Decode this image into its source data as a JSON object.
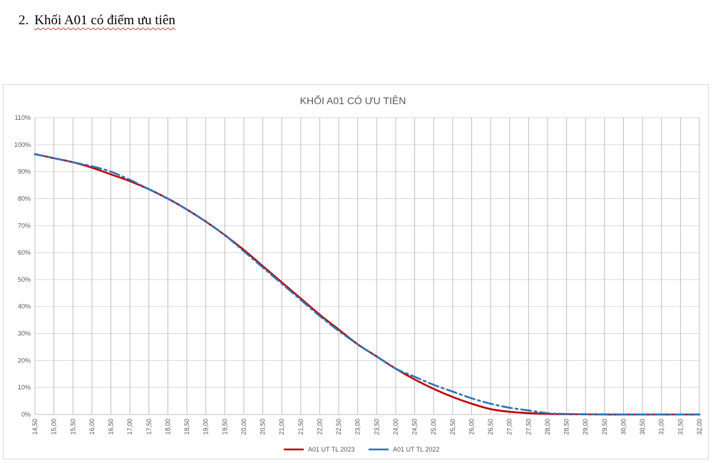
{
  "document": {
    "heading_number": "2.",
    "heading_text": "Khối A01 có điểm ưu tiên"
  },
  "chart_data": {
    "type": "line",
    "title": "KHỐI A01 CÓ ƯU TIÊN",
    "xlabel": "",
    "ylabel": "",
    "ylim": [
      0,
      110
    ],
    "x_tick_labels": [
      "14,50",
      "15,00",
      "15,50",
      "16,00",
      "16,50",
      "17,00",
      "17,50",
      "18,00",
      "18,50",
      "19,00",
      "19,50",
      "20,00",
      "20,50",
      "21,00",
      "21,50",
      "22,00",
      "22,50",
      "23,00",
      "23,50",
      "24,00",
      "24,50",
      "25,00",
      "25,50",
      "26,00",
      "26,50",
      "27,00",
      "27,50",
      "28,00",
      "28,50",
      "29,00",
      "29,50",
      "30,00",
      "30,50",
      "31,00",
      "31,50",
      "32,00"
    ],
    "y_tick_labels": [
      "0%",
      "10%",
      "20%",
      "30%",
      "40%",
      "50%",
      "60%",
      "70%",
      "80%",
      "90%",
      "100%",
      "110%"
    ],
    "grid": true,
    "legend_position": "bottom",
    "series": [
      {
        "name": "A01 UT TL 2023",
        "color": "#c00000",
        "dash": "solid",
        "x": [
          14.5,
          15,
          15.5,
          16,
          16.5,
          17,
          17.5,
          18,
          18.5,
          19,
          19.5,
          20,
          20.5,
          21,
          21.5,
          22,
          22.5,
          23,
          23.5,
          24,
          24.5,
          25,
          25.5,
          26,
          26.5,
          27,
          27.5,
          28,
          28.5,
          29,
          29.5,
          30,
          30.5,
          31,
          31.5,
          32
        ],
        "values": [
          96.5,
          95,
          93.5,
          91.5,
          89,
          86.5,
          83.5,
          80,
          76,
          71.5,
          66.5,
          61,
          55,
          49,
          43,
          37,
          31.5,
          26,
          21.5,
          17,
          13,
          9.5,
          6.5,
          4,
          2,
          1,
          0.5,
          0.2,
          0.1,
          0.05,
          0,
          0,
          0,
          0,
          0,
          0
        ]
      },
      {
        "name": "A01 UT TL 2022",
        "color": "#2e75b6",
        "dash": "dash",
        "x": [
          14.5,
          15,
          15.5,
          16,
          16.5,
          17,
          17.5,
          18,
          18.5,
          19,
          19.5,
          20,
          20.5,
          21,
          21.5,
          22,
          22.5,
          23,
          23.5,
          24,
          24.5,
          25,
          25.5,
          26,
          26.5,
          27,
          27.5,
          28,
          28.5,
          29,
          29.5,
          30,
          30.5,
          31,
          31.5,
          32
        ],
        "values": [
          96.5,
          95,
          93.5,
          92,
          90,
          87,
          83.5,
          80,
          76,
          71.5,
          66.5,
          60.5,
          54.5,
          48.5,
          42.5,
          36.5,
          31,
          26,
          21.5,
          17,
          14,
          11,
          8.5,
          6,
          4,
          2.5,
          1.5,
          0.5,
          0.2,
          0.1,
          0.05,
          0,
          0,
          0,
          0,
          0
        ]
      }
    ]
  }
}
